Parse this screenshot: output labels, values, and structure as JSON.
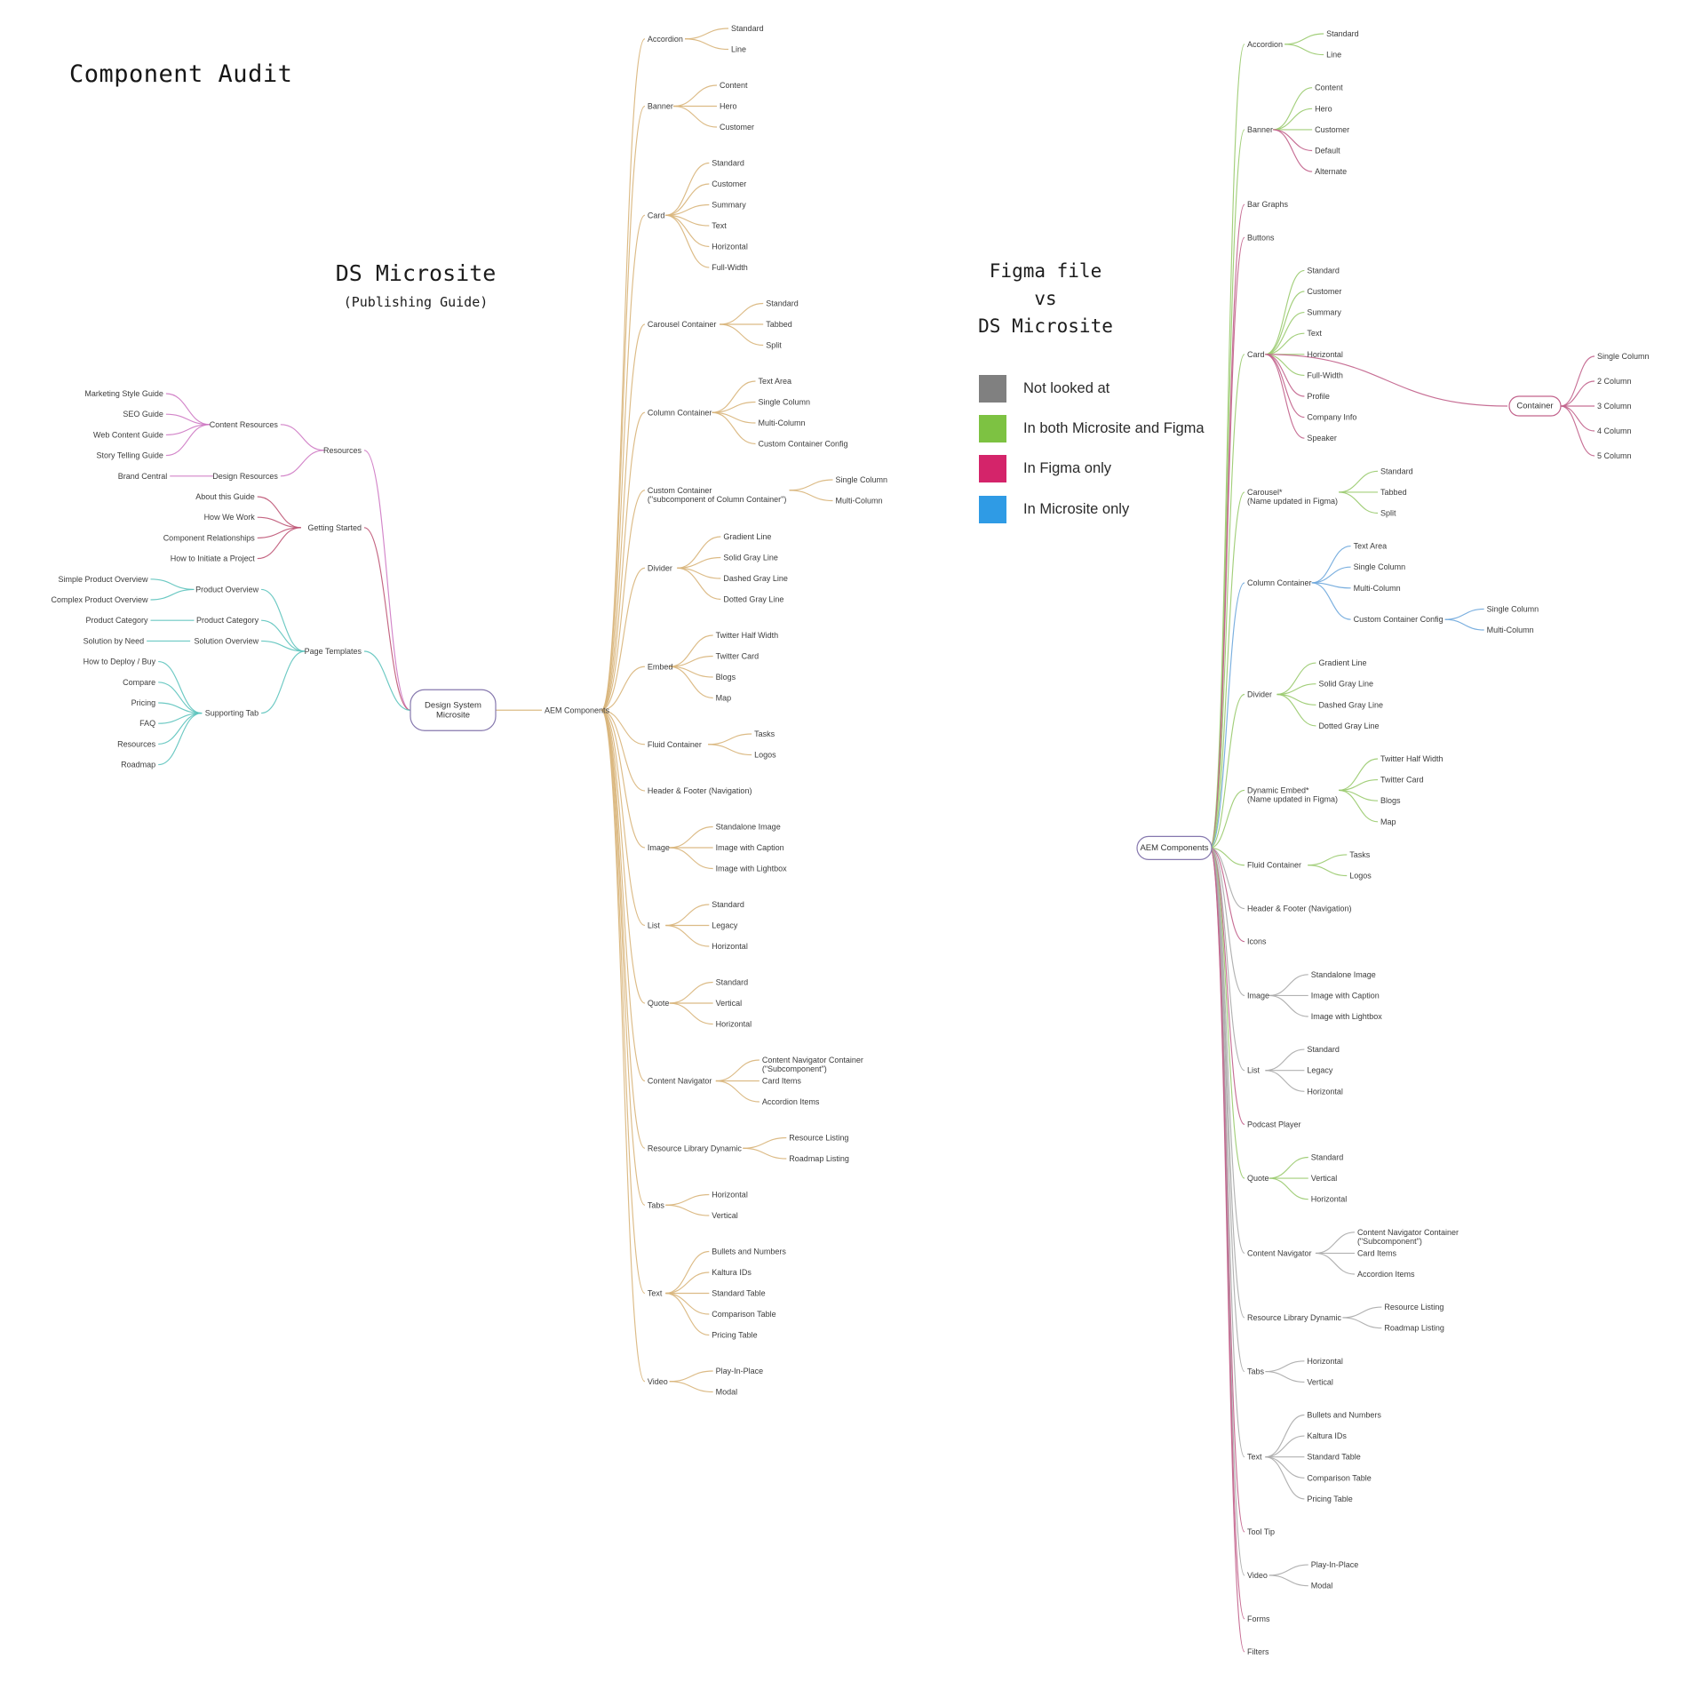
{
  "title": "Component Audit",
  "left_heading": {
    "line1": "DS Microsite",
    "line2": "(Publishing Guide)"
  },
  "right_heading": {
    "line1": "Figma file",
    "line2": "vs",
    "line3": "DS Microsite"
  },
  "legend": [
    {
      "label": "Not looked at",
      "color": "#808080"
    },
    {
      "label": "In both Microsite and Figma",
      "color": "#7DC242"
    },
    {
      "label": "In Figma only",
      "color": "#D4246A"
    },
    {
      "label": "In Microsite only",
      "color": "#2F9BE5"
    }
  ],
  "palette": {
    "tan": "#D9B57C",
    "orchid": "#CF7BC4",
    "rose": "#BF5877",
    "teal": "#5FC4BE",
    "green": "#9BCB70",
    "pink": "#C2638C",
    "blue": "#6FA8DC",
    "gray": "#ABABAB",
    "box_border": "#8678AE",
    "label_color": "#3C3C3C"
  },
  "trees": {
    "microsite": {
      "root": {
        "label": "Design System Microsite",
        "lines": [
          "Design System",
          "Microsite"
        ]
      },
      "left": [
        {
          "label": "Resources",
          "c": "orchid",
          "children": [
            {
              "label": "Content Resources",
              "children": [
                {
                  "label": "Marketing Style Guide"
                },
                {
                  "label": "SEO Guide"
                },
                {
                  "label": "Web Content Guide"
                },
                {
                  "label": "Story Telling Guide"
                }
              ]
            },
            {
              "label": "Design Resources",
              "children": [
                {
                  "label": "Brand Central"
                }
              ]
            }
          ]
        },
        {
          "label": "Getting Started",
          "c": "rose",
          "children": [
            {
              "label": "About this Guide"
            },
            {
              "label": "How We Work"
            },
            {
              "label": "Component Relationships"
            },
            {
              "label": "How to Initiate a Project"
            }
          ]
        },
        {
          "label": "Page Templates",
          "c": "teal",
          "children": [
            {
              "label": "Product Overview",
              "children": [
                {
                  "label": "Simple Product Overview"
                },
                {
                  "label": "Complex Product Overview"
                }
              ]
            },
            {
              "label": "Product Category",
              "children": [
                {
                  "label": "Product Category"
                }
              ]
            },
            {
              "label": "Solution Overview",
              "children": [
                {
                  "label": "Solution by Need"
                }
              ]
            },
            {
              "label": "Supporting Tab",
              "children": [
                {
                  "label": "How to Deploy / Buy"
                },
                {
                  "label": "Compare"
                },
                {
                  "label": "Pricing"
                },
                {
                  "label": "FAQ"
                },
                {
                  "label": "Resources"
                },
                {
                  "label": "Roadmap"
                }
              ]
            }
          ]
        }
      ],
      "right": {
        "label": "AEM Components",
        "c": "tan",
        "children": [
          {
            "label": "Accordion",
            "children": [
              {
                "label": "Standard"
              },
              {
                "label": "Line"
              }
            ]
          },
          {
            "label": "Banner",
            "children": [
              {
                "label": "Content"
              },
              {
                "label": "Hero"
              },
              {
                "label": "Customer"
              }
            ]
          },
          {
            "label": "Card",
            "children": [
              {
                "label": "Standard"
              },
              {
                "label": "Customer"
              },
              {
                "label": "Summary"
              },
              {
                "label": "Text"
              },
              {
                "label": "Horizontal"
              },
              {
                "label": "Full-Width"
              }
            ]
          },
          {
            "label": "Carousel Container",
            "children": [
              {
                "label": "Standard"
              },
              {
                "label": "Tabbed"
              },
              {
                "label": "Split"
              }
            ]
          },
          {
            "label": "Column Container",
            "children": [
              {
                "label": "Text Area"
              },
              {
                "label": "Single Column"
              },
              {
                "label": "Multi-Column"
              },
              {
                "label": "Custom Container Config"
              }
            ]
          },
          {
            "label": "Custom Container",
            "sub": "(\"subcomponent of Column Container\")",
            "children": [
              {
                "label": "Single Column"
              },
              {
                "label": "Multi-Column"
              }
            ]
          },
          {
            "label": "Divider",
            "children": [
              {
                "label": "Gradient Line"
              },
              {
                "label": "Solid Gray Line"
              },
              {
                "label": "Dashed Gray Line"
              },
              {
                "label": "Dotted Gray Line"
              }
            ]
          },
          {
            "label": "Embed",
            "children": [
              {
                "label": "Twitter Half Width"
              },
              {
                "label": "Twitter Card"
              },
              {
                "label": "Blogs"
              },
              {
                "label": "Map"
              }
            ]
          },
          {
            "label": "Fluid Container",
            "children": [
              {
                "label": "Tasks"
              },
              {
                "label": "Logos"
              }
            ]
          },
          {
            "label": "Header & Footer (Navigation)"
          },
          {
            "label": "Image",
            "children": [
              {
                "label": "Standalone Image"
              },
              {
                "label": "Image with Caption"
              },
              {
                "label": "Image with Lightbox"
              }
            ]
          },
          {
            "label": "List",
            "children": [
              {
                "label": "Standard"
              },
              {
                "label": "Legacy"
              },
              {
                "label": "Horizontal"
              }
            ]
          },
          {
            "label": "Quote",
            "children": [
              {
                "label": "Standard"
              },
              {
                "label": "Vertical"
              },
              {
                "label": "Horizontal"
              }
            ]
          },
          {
            "label": "Content Navigator",
            "children": [
              {
                "label": "Content Navigator Container",
                "sub": "(\"Subcomponent\")"
              },
              {
                "label": "Card Items"
              },
              {
                "label": "Accordion Items"
              }
            ]
          },
          {
            "label": "Resource Library Dynamic",
            "children": [
              {
                "label": "Resource Listing"
              },
              {
                "label": "Roadmap Listing"
              }
            ]
          },
          {
            "label": "Tabs",
            "children": [
              {
                "label": "Horizontal"
              },
              {
                "label": "Vertical"
              }
            ]
          },
          {
            "label": "Text",
            "children": [
              {
                "label": "Bullets and Numbers"
              },
              {
                "label": "Kaltura IDs"
              },
              {
                "label": "Standard Table"
              },
              {
                "label": "Comparison Table"
              },
              {
                "label": "Pricing Table"
              }
            ]
          },
          {
            "label": "Video",
            "children": [
              {
                "label": "Play-In-Place"
              },
              {
                "label": "Modal"
              }
            ]
          }
        ]
      }
    },
    "figma": {
      "root": {
        "label": "AEM Components",
        "lines": [
          "AEM Components"
        ]
      },
      "right": [
        {
          "label": "Accordion",
          "c": "green",
          "children": [
            {
              "label": "Standard"
            },
            {
              "label": "Line"
            }
          ]
        },
        {
          "label": "Banner",
          "c": "green",
          "children": [
            {
              "label": "Content"
            },
            {
              "label": "Hero"
            },
            {
              "label": "Customer"
            },
            {
              "label": "Default",
              "c": "pink"
            },
            {
              "label": "Alternate",
              "c": "pink"
            }
          ]
        },
        {
          "label": "Bar Graphs",
          "c": "pink"
        },
        {
          "label": "Buttons",
          "c": "pink"
        },
        {
          "label": "Card",
          "c": "green",
          "children": [
            {
              "label": "Standard"
            },
            {
              "label": "Customer"
            },
            {
              "label": "Summary"
            },
            {
              "label": "Text"
            },
            {
              "label": "Horizontal"
            },
            {
              "label": "Full-Width"
            },
            {
              "label": "Profile",
              "c": "pink"
            },
            {
              "label": "Company Info",
              "c": "pink"
            },
            {
              "label": "Speaker",
              "c": "pink"
            }
          ]
        },
        {
          "label": "Carousel*",
          "sub": "(Name updated in Figma)",
          "c": "green",
          "children": [
            {
              "label": "Standard"
            },
            {
              "label": "Tabbed"
            },
            {
              "label": "Split"
            }
          ]
        },
        {
          "label": "Column Container",
          "c": "blue",
          "children": [
            {
              "label": "Text Area"
            },
            {
              "label": "Single Column"
            },
            {
              "label": "Multi-Column"
            },
            {
              "label": "Custom Container Config",
              "children": [
                {
                  "label": "Single Column"
                },
                {
                  "label": "Multi-Column"
                }
              ]
            }
          ]
        },
        {
          "label": "Divider",
          "c": "green",
          "children": [
            {
              "label": "Gradient Line"
            },
            {
              "label": "Solid Gray Line"
            },
            {
              "label": "Dashed Gray Line"
            },
            {
              "label": "Dotted Gray Line"
            }
          ]
        },
        {
          "label": "Dynamic Embed*",
          "sub": "(Name updated in Figma)",
          "c": "green",
          "children": [
            {
              "label": "Twitter Half Width"
            },
            {
              "label": "Twitter Card"
            },
            {
              "label": "Blogs"
            },
            {
              "label": "Map"
            }
          ]
        },
        {
          "label": "Fluid Container",
          "c": "green",
          "children": [
            {
              "label": "Tasks"
            },
            {
              "label": "Logos"
            }
          ]
        },
        {
          "label": "Header & Footer (Navigation)",
          "c": "gray"
        },
        {
          "label": "Icons",
          "c": "pink"
        },
        {
          "label": "Image",
          "c": "gray",
          "children": [
            {
              "label": "Standalone Image"
            },
            {
              "label": "Image with Caption"
            },
            {
              "label": "Image with Lightbox"
            }
          ]
        },
        {
          "label": "List",
          "c": "gray",
          "children": [
            {
              "label": "Standard"
            },
            {
              "label": "Legacy"
            },
            {
              "label": "Horizontal"
            }
          ]
        },
        {
          "label": "Podcast Player",
          "c": "pink"
        },
        {
          "label": "Quote",
          "c": "green",
          "children": [
            {
              "label": "Standard"
            },
            {
              "label": "Vertical"
            },
            {
              "label": "Horizontal"
            }
          ]
        },
        {
          "label": "Content Navigator",
          "c": "gray",
          "children": [
            {
              "label": "Content Navigator Container",
              "sub": "(\"Subcomponent\")"
            },
            {
              "label": "Card Items"
            },
            {
              "label": "Accordion Items"
            }
          ]
        },
        {
          "label": "Resource Library Dynamic",
          "c": "gray",
          "children": [
            {
              "label": "Resource Listing"
            },
            {
              "label": "Roadmap Listing"
            }
          ]
        },
        {
          "label": "Tabs",
          "c": "gray",
          "children": [
            {
              "label": "Horizontal"
            },
            {
              "label": "Vertical"
            }
          ]
        },
        {
          "label": "Text",
          "c": "gray",
          "children": [
            {
              "label": "Bullets and Numbers"
            },
            {
              "label": "Kaltura IDs"
            },
            {
              "label": "Standard Table"
            },
            {
              "label": "Comparison Table"
            },
            {
              "label": "Pricing Table"
            }
          ]
        },
        {
          "label": "Tool Tip",
          "c": "pink"
        },
        {
          "label": "Video",
          "c": "gray",
          "children": [
            {
              "label": "Play-In-Place"
            },
            {
              "label": "Modal"
            }
          ]
        },
        {
          "label": "Forms",
          "c": "pink"
        },
        {
          "label": "Filters",
          "c": "pink"
        }
      ]
    },
    "container": {
      "root": {
        "label": "Container",
        "lines": [
          "Container"
        ]
      },
      "linked_from": "Card",
      "right": [
        {
          "label": "Single Column",
          "c": "pink"
        },
        {
          "label": "2 Column",
          "c": "pink"
        },
        {
          "label": "3 Column",
          "c": "pink"
        },
        {
          "label": "4 Column",
          "c": "pink"
        },
        {
          "label": "5 Column",
          "c": "pink"
        }
      ]
    }
  }
}
